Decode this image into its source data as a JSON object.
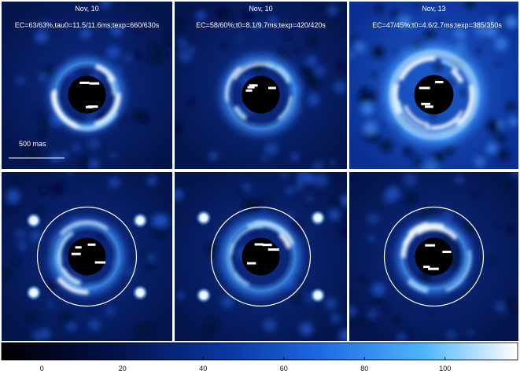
{
  "panels": [
    {
      "date": "Nov, 10",
      "params": "EC=63/63%,tau0=11.5/11.6ms;texp=660/630s",
      "scale_label": "500 mas",
      "row": "top",
      "variant": 0
    },
    {
      "date": "Nov, 10",
      "params": "EC=58/60%;t0=8.1/9.7ms;texp=420/420s",
      "row": "top",
      "variant": 1
    },
    {
      "date": "Nov, 13",
      "params": "EC=47/45%;t0=4.6/2.7ms;texp=385/350s",
      "row": "top",
      "variant": 2
    },
    {
      "row": "bottom",
      "variant": 0,
      "circle": true,
      "spots": true
    },
    {
      "row": "bottom",
      "variant": 1,
      "circle": true,
      "spots": true
    },
    {
      "row": "bottom",
      "variant": 2,
      "circle": true,
      "spots": false
    }
  ],
  "colorbar": {
    "ticks": [
      "0",
      "20",
      "40",
      "60",
      "80",
      "100"
    ],
    "tick_values": [
      0,
      20,
      40,
      60,
      80,
      100
    ],
    "range": [
      -10,
      118
    ],
    "colors": [
      "#000000",
      "#03114a",
      "#0a3aa6",
      "#1f6ae0",
      "#4fb6ff",
      "#ffffff"
    ]
  }
}
